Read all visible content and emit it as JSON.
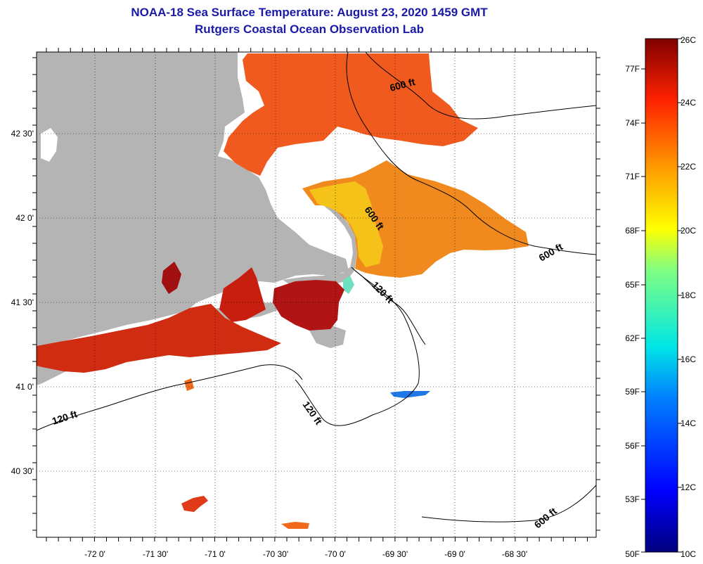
{
  "title": {
    "line1": "NOAA-18 Sea Surface Temperature:  August 23, 2020 1459 GMT",
    "line2": "Rutgers Coastal Ocean Observation Lab"
  },
  "map": {
    "lon_ticks": [
      "-72 0'",
      "-71 30'",
      "-71 0'",
      "-70 30'",
      "-70 0'",
      "-69 30'",
      "-69 0'",
      "-68 30'"
    ],
    "lat_ticks": [
      "42 30'",
      "42 0'",
      "41 30'",
      "41 0'",
      "40 30'"
    ],
    "contour_labels": [
      "600 ft",
      "600 ft",
      "600 ft",
      "600 ft",
      "120 ft",
      "120 ft",
      "120 ft"
    ]
  },
  "colorbar": {
    "fahrenheit": [
      "77F",
      "74F",
      "71F",
      "68F",
      "65F",
      "62F",
      "59F",
      "56F",
      "53F",
      "50F"
    ],
    "celsius": [
      "26C",
      "24C",
      "22C",
      "20C",
      "18C",
      "16C",
      "14C",
      "12C",
      "10C"
    ],
    "range_c": [
      10,
      26
    ]
  },
  "colors": {
    "land": "#b4b4b4",
    "warm": "#e8431a",
    "hot": "#b01010",
    "title": "#1a1aa6"
  }
}
